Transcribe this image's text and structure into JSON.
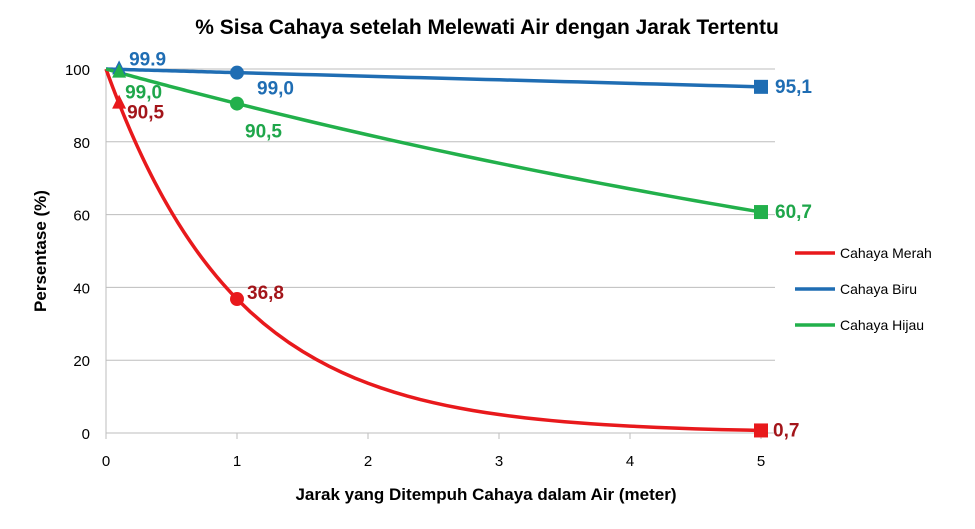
{
  "chart_data": {
    "type": "line",
    "title": "% Sisa Cahaya setelah Melewati Air dengan Jarak Tertentu",
    "xlabel": "Jarak yang Ditempuh Cahaya dalam Air (meter)",
    "ylabel": "Persentase (%)",
    "xlim": [
      0,
      5
    ],
    "ylim": [
      0,
      100
    ],
    "xticks": [
      "0",
      "1",
      "2",
      "3",
      "4",
      "5"
    ],
    "yticks": [
      "0",
      "20",
      "40",
      "60",
      "80",
      "100"
    ],
    "grid": "horizontal",
    "legend_position": "right",
    "series": [
      {
        "name": "Cahaya Merah",
        "color": "#e8191c",
        "label_color": "#a3151a",
        "x": [
          0,
          0.1,
          1,
          5
        ],
        "y": [
          100,
          90.5,
          36.8,
          0.7
        ],
        "labels": [
          "",
          "90,5",
          "36,8",
          "0,7"
        ]
      },
      {
        "name": "Cahaya Biru",
        "color": "#1f6db3",
        "label_color": "#1f6db3",
        "x": [
          0,
          0.1,
          1,
          5
        ],
        "y": [
          100,
          99.9,
          99.0,
          95.1
        ],
        "labels": [
          "",
          "99.9",
          "99,0",
          "95,1"
        ]
      },
      {
        "name": "Cahaya Hijau",
        "color": "#22b04b",
        "label_color": "#1ea64a",
        "x": [
          0,
          0.1,
          1,
          5
        ],
        "y": [
          100,
          99.0,
          90.5,
          60.7
        ],
        "labels": [
          "",
          "99,0",
          "90,5",
          "60,7"
        ]
      }
    ]
  }
}
